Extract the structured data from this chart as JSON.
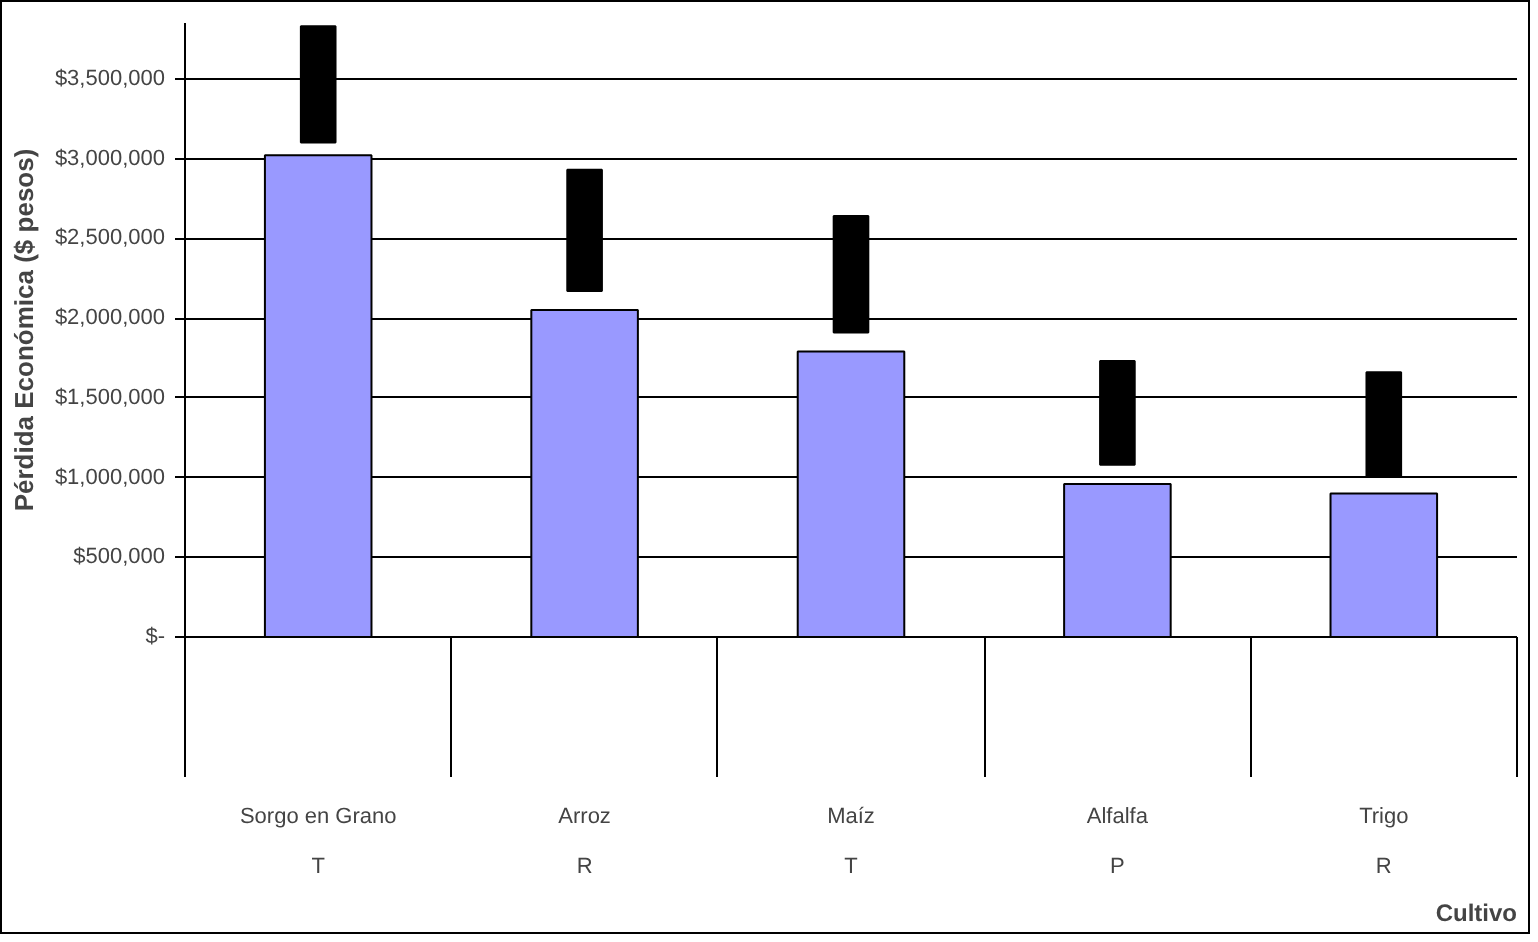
{
  "chart_data": {
    "type": "bar",
    "xlabel": "Cultivo",
    "ylabel": "Pérdida Económica ($ pesos)",
    "categories": [
      "Sorgo en Grano",
      "Arroz",
      "Maíz",
      "Alfalfa",
      "Trigo"
    ],
    "series": [
      {
        "color": "#9999ff",
        "values": [
          3020000,
          2050000,
          1790000,
          960000,
          900000
        ]
      },
      {
        "color": "#000000",
        "base": [
          3100000,
          2170000,
          1910000,
          1080000,
          1010000
        ],
        "values": [
          730000,
          760000,
          730000,
          650000,
          650000
        ]
      }
    ],
    "ylim": [
      0,
      3850000
    ],
    "yticks": [
      {
        "value": 0,
        "label": "$-"
      },
      {
        "value": 500000,
        "label": "$500,000"
      },
      {
        "value": 1000000,
        "label": "$1,000,000"
      },
      {
        "value": 1500000,
        "label": "$1,500,000"
      },
      {
        "value": 2000000,
        "label": "$2,000,000"
      },
      {
        "value": 2500000,
        "label": "$2,500,000"
      },
      {
        "value": 3000000,
        "label": "$3,000,000"
      },
      {
        "value": 3500000,
        "label": "$3,500,000"
      }
    ],
    "grid": "y",
    "annotations": [
      "T",
      "R",
      "T",
      "P",
      "R"
    ]
  }
}
